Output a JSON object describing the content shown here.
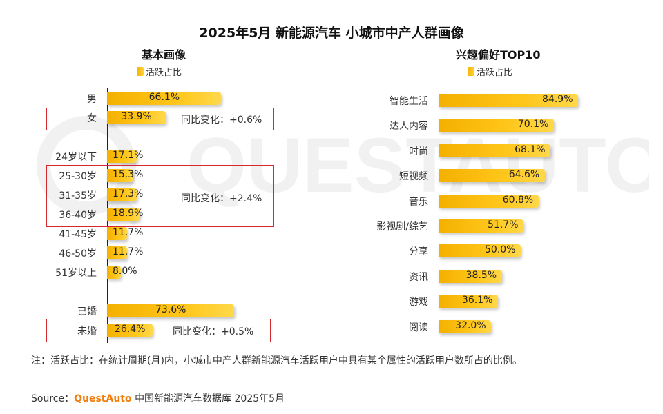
{
  "title": "2025年5月 新能源汽车 小城市中产人群画像",
  "watermark": "QUESTAUTO",
  "chart_data": [
    {
      "type": "bar",
      "title": "基本画像",
      "legend": "活跃占比",
      "groups": [
        {
          "categories": [
            "男",
            "女"
          ],
          "values": [
            66.1,
            33.9
          ],
          "labels": [
            "66.1%",
            "33.9%"
          ]
        },
        {
          "categories": [
            "24岁以下",
            "25-30岁",
            "31-35岁",
            "36-40岁",
            "41-45岁",
            "46-50岁",
            "51岁以上"
          ],
          "values": [
            17.1,
            15.3,
            17.3,
            18.9,
            11.7,
            11.7,
            8.0
          ],
          "labels": [
            "17.1%",
            "15.3%",
            "17.3%",
            "18.9%",
            "11.7%",
            "11.7%",
            "8.0%"
          ]
        },
        {
          "categories": [
            "已婚",
            "未婚"
          ],
          "values": [
            73.6,
            26.4
          ],
          "labels": [
            "73.6%",
            "26.4%"
          ]
        }
      ],
      "annotations": [
        "同比变化：+0.6%",
        "同比变化：+2.4%",
        "同比变化：+0.5%"
      ]
    },
    {
      "type": "bar",
      "title": "兴趣偏好TOP10",
      "legend": "活跃占比",
      "categories": [
        "智能生活",
        "达人内容",
        "时尚",
        "短视频",
        "音乐",
        "影视剧/综艺",
        "分享",
        "资讯",
        "游戏",
        "阅读"
      ],
      "values": [
        84.9,
        70.1,
        68.1,
        64.6,
        60.8,
        51.7,
        50.0,
        38.5,
        36.1,
        32.0
      ],
      "labels": [
        "84.9%",
        "70.1%",
        "68.1%",
        "64.6%",
        "60.8%",
        "51.7%",
        "50.0%",
        "38.5%",
        "36.1%",
        "32.0%"
      ]
    }
  ],
  "note": "注：活跃占比：在统计周期(月)内，小城市中产人群新能源汽车活跃用户中具有某个属性的活跃用户数所占的比例。",
  "source": {
    "prefix": "Source：",
    "brand": "QuestAuto",
    "text": "中国新能源汽车数据库 2025年5月"
  },
  "colors": {
    "bar": "#ffc61a",
    "highlight_border": "#d6262e",
    "brand": "#f07d0c"
  }
}
